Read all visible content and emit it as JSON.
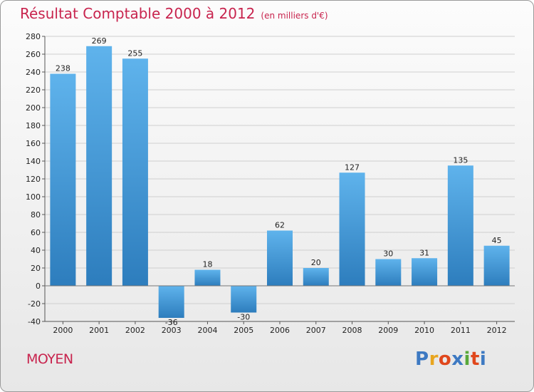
{
  "header": {
    "title": "Résultat Comptable 2000 à 2012",
    "unit_note": "(en milliers d'€)"
  },
  "footer": {
    "commune": "MOYEN",
    "logo_text": "Proxiti",
    "logo_colors": [
      "#3d79c2",
      "#e8a51f",
      "#e0471c",
      "#3d79c2",
      "#58a83a",
      "#e0471c",
      "#3d79c2"
    ]
  },
  "colors": {
    "bar_top": "#5fb3ec",
    "bar_bottom": "#2d7dbd",
    "title": "#c8244e",
    "grid": "#cfcfcf"
  },
  "chart_data": {
    "type": "bar",
    "categories": [
      "2000",
      "2001",
      "2002",
      "2003",
      "2004",
      "2005",
      "2006",
      "2007",
      "2008",
      "2009",
      "2010",
      "2011",
      "2012"
    ],
    "values": [
      238,
      269,
      255,
      -36,
      18,
      -30,
      62,
      20,
      127,
      30,
      31,
      135,
      45
    ],
    "title": "Résultat Comptable 2000 à 2012",
    "subtitle": "(en milliers d'€)",
    "ylim": [
      -40,
      280
    ],
    "yticks": [
      -40,
      -20,
      0,
      20,
      40,
      60,
      80,
      100,
      120,
      140,
      160,
      180,
      200,
      220,
      240,
      260,
      280
    ],
    "grid": true,
    "legend": "none"
  }
}
